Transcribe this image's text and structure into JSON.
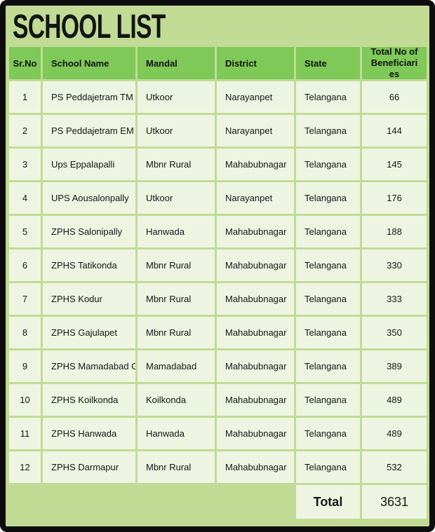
{
  "chart_data": {
    "type": "table",
    "title": "SCHOOL LIST",
    "columns": [
      "Sr.No",
      "School Name",
      "Mandal",
      "District",
      "State",
      "Total No of Beneficiari es"
    ],
    "rows": [
      [
        "1",
        "PS Peddajetram TM",
        "Utkoor",
        "Narayanpet",
        "Telangana",
        "66"
      ],
      [
        "2",
        "PS Peddajetram EM",
        "Utkoor",
        "Narayanpet",
        "Telangana",
        "144"
      ],
      [
        "3",
        "Ups Eppalapalli",
        "Mbnr Rural",
        "Mahabubnagar",
        "Telangana",
        "145"
      ],
      [
        "4",
        "UPS Aousalonpally",
        "Utkoor",
        "Narayanpet",
        "Telangana",
        "176"
      ],
      [
        "5",
        "ZPHS Salonipally",
        "Hanwada",
        "Mahabubnagar",
        "Telangana",
        "188"
      ],
      [
        "6",
        "ZPHS Tatikonda",
        "Mbnr Rural",
        "Mahabubnagar",
        "Telangana",
        "330"
      ],
      [
        "7",
        "ZPHS Kodur",
        "Mbnr Rural",
        "Mahabubnagar",
        "Telangana",
        "333"
      ],
      [
        "8",
        "ZPHS Gajulapet",
        "Mbnr Rural",
        "Mahabubnagar",
        "Telangana",
        "350"
      ],
      [
        "9",
        "ZPHS Mamadabad Girls",
        "Mamadabad",
        "Mahabubnagar",
        "Telangana",
        "389"
      ],
      [
        "10",
        "ZPHS Koilkonda",
        "Koilkonda",
        "Mahabubnagar",
        "Telangana",
        "489"
      ],
      [
        "11",
        "ZPHS Hanwada",
        "Hanwada",
        "Mahabubnagar",
        "Telangana",
        "489"
      ],
      [
        "12",
        "ZPHS Darmapur",
        "Mbnr Rural",
        "Mahabubnagar",
        "Telangana",
        "532"
      ]
    ],
    "total": {
      "label": "Total",
      "value": "3631"
    },
    "colors": {
      "background": "#c1db94",
      "header_cell": "#7ec957",
      "row_cell": "#edf5e2",
      "frame": "#0d0d0d",
      "text": "#161616"
    }
  }
}
